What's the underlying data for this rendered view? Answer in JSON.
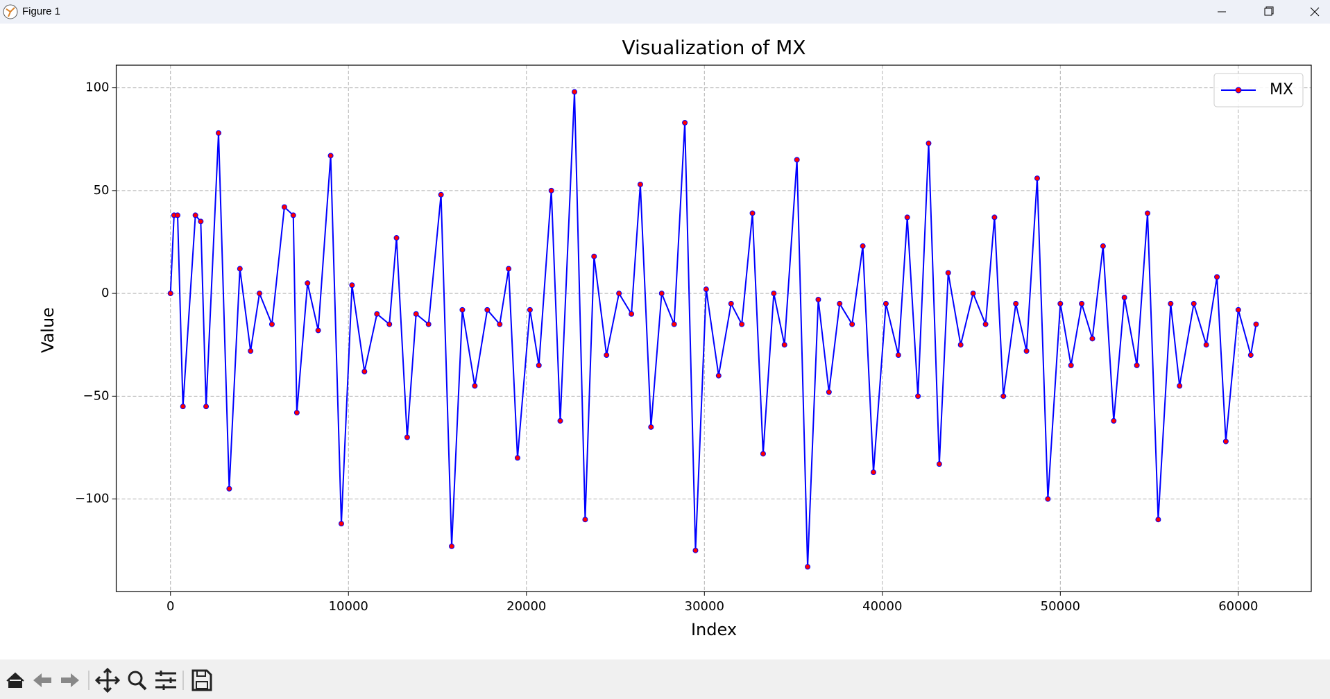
{
  "window": {
    "title": "Figure 1"
  },
  "chart_data": {
    "type": "line",
    "title": "Visualization of MX",
    "x_label": "Index",
    "y_label": "Value",
    "x": [
      0,
      200,
      400,
      700,
      1400,
      1700,
      2000,
      2700,
      3300,
      3900,
      4500,
      5000,
      5700,
      6400,
      6900,
      7100,
      7700,
      8300,
      9000,
      9600,
      10200,
      10900,
      11600,
      12300,
      12700,
      13300,
      13800,
      14500,
      15200,
      15800,
      16400,
      17100,
      17800,
      18500,
      19000,
      19500,
      20200,
      20700,
      21400,
      21900,
      22700,
      23300,
      23800,
      24500,
      25200,
      25900,
      26400,
      27000,
      27600,
      28300,
      28900,
      29500,
      30100,
      30800,
      31500,
      32100,
      32700,
      33300,
      33900,
      34500,
      35200,
      35800,
      36400,
      37000,
      37600,
      38300,
      38900,
      39500,
      40200,
      40900,
      41400,
      42000,
      42600,
      43200,
      43700,
      44400,
      45100,
      45800,
      46300,
      46800,
      47500,
      48100,
      48700,
      49300,
      50000,
      50600,
      51200,
      51800,
      52400,
      53000,
      53600,
      54300,
      54900,
      55500,
      56200,
      56700,
      57500,
      58200,
      58800,
      59300,
      60000,
      60700,
      61000
    ],
    "series": [
      {
        "name": "MX",
        "color": "#0000ff",
        "marker_color": "#ff0000",
        "values": [
          0,
          38,
          38,
          -55,
          38,
          35,
          -55,
          78,
          -95,
          12,
          -28,
          0,
          -15,
          42,
          38,
          -58,
          5,
          -18,
          67,
          -112,
          4,
          -38,
          -10,
          -15,
          27,
          -70,
          -10,
          -15,
          48,
          -123,
          -8,
          -45,
          -8,
          -15,
          12,
          -80,
          -8,
          -35,
          50,
          -62,
          98,
          -110,
          18,
          -30,
          0,
          -10,
          53,
          -65,
          0,
          -15,
          83,
          -125,
          2,
          -40,
          -5,
          -15,
          39,
          -78,
          0,
          -25,
          65,
          -133,
          -3,
          -48,
          -5,
          -15,
          23,
          -87,
          -5,
          -30,
          37,
          -50,
          73,
          -83,
          10,
          -25,
          0,
          -15,
          37,
          -50,
          -5,
          -28,
          56,
          -100,
          -5,
          -35,
          -5,
          -22,
          23,
          -62,
          -2,
          -35,
          39,
          -110,
          -5,
          -45,
          -5,
          -25,
          8,
          -72,
          -8,
          -30,
          -15
        ]
      }
    ],
    "xlim": [
      -3050,
      64100
    ],
    "ylim": [
      -145,
      111
    ],
    "xticks": [
      0,
      10000,
      20000,
      30000,
      40000,
      50000,
      60000
    ],
    "yticks": [
      {
        "value": -100,
        "label": "−100"
      },
      {
        "value": -50,
        "label": "−50"
      },
      0,
      50,
      100
    ],
    "grid": true,
    "legend": "upper right"
  }
}
